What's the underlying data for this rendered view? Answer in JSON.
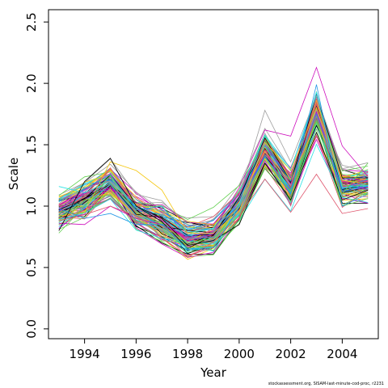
{
  "chart_data": {
    "type": "line",
    "xlabel": "Year",
    "ylabel": "Scale",
    "xlim": [
      1992.6,
      2005.4
    ],
    "ylim": [
      -0.08,
      2.6
    ],
    "xticks": [
      1994,
      1996,
      1998,
      2000,
      2002,
      2004
    ],
    "yticks": [
      0.0,
      0.5,
      1.0,
      1.5,
      2.0,
      2.5
    ],
    "xtick_labels": [
      "1994",
      "1996",
      "1998",
      "2000",
      "2002",
      "2004"
    ],
    "ytick_labels": [
      "0.0",
      "0.5",
      "1.0",
      "1.5",
      "2.0",
      "2.5"
    ],
    "grid": false,
    "legend": "none",
    "x": [
      1993,
      1994,
      1995,
      1996,
      1997,
      1998,
      1999,
      2000,
      2001,
      2002,
      2003,
      2004,
      2005
    ],
    "num_series": 100,
    "central_profile": [
      0.95,
      1.05,
      1.18,
      0.95,
      0.85,
      0.72,
      0.76,
      1.0,
      1.45,
      1.15,
      1.75,
      1.15,
      1.17
    ],
    "highlight_series": [
      {
        "values": [
          1.16,
          1.11,
          1.2,
          1.0,
          0.92,
          0.79,
          0.81,
          1.02,
          1.58,
          1.3,
          1.9,
          1.15,
          1.17
        ]
      },
      {
        "values": [
          0.86,
          0.85,
          1.0,
          0.9,
          0.85,
          0.74,
          0.8,
          1.15,
          1.62,
          1.57,
          2.13,
          1.49,
          1.24
        ]
      },
      {
        "values": [
          0.92,
          0.95,
          1.36,
          1.29,
          1.13,
          0.78,
          0.78,
          0.96,
          1.52,
          1.29,
          1.8,
          1.21,
          1.18
        ]
      },
      {
        "values": [
          1.02,
          1.15,
          1.2,
          1.02,
          1.03,
          0.87,
          0.8,
          1.08,
          1.78,
          1.36,
          1.9,
          1.3,
          1.24
        ]
      },
      {
        "values": [
          0.8,
          1.2,
          1.39,
          1.0,
          0.9,
          0.68,
          0.72,
          0.85,
          1.35,
          1.05,
          1.6,
          1.05,
          1.13
        ]
      },
      {
        "values": [
          0.88,
          0.93,
          1.0,
          0.92,
          0.8,
          0.58,
          0.71,
          0.92,
          1.22,
          0.95,
          1.26,
          0.94,
          0.98
        ]
      },
      {
        "values": [
          0.78,
          1.0,
          1.25,
          0.95,
          0.85,
          0.7,
          0.74,
          0.92,
          1.4,
          1.12,
          1.7,
          1.1,
          1.35
        ]
      },
      {
        "values": [
          0.98,
          0.9,
          0.94,
          0.85,
          0.85,
          0.65,
          0.66,
          0.99,
          1.4,
          1.1,
          1.99,
          1.0,
          1.1
        ]
      }
    ],
    "credit": "stockassessment.org, SISAM-last-minute-cod-proc, r2231"
  }
}
